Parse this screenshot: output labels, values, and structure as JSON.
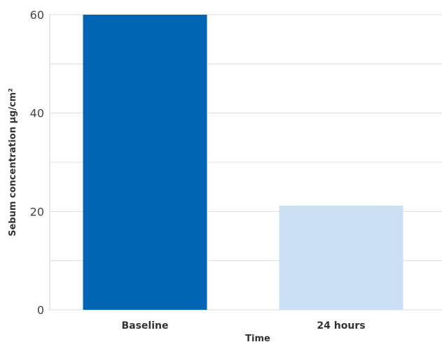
{
  "chart_data": {
    "type": "bar",
    "categories": [
      "Baseline",
      "24 hours"
    ],
    "values": [
      60,
      21.2
    ],
    "colors": [
      "#0066b3",
      "#cce0f3"
    ],
    "xlabel": "Time",
    "ylabel": "Sebum concentration µg/cm²",
    "ylim": [
      0,
      60
    ],
    "yticks": [
      0,
      20,
      40,
      60
    ],
    "grid": true
  }
}
